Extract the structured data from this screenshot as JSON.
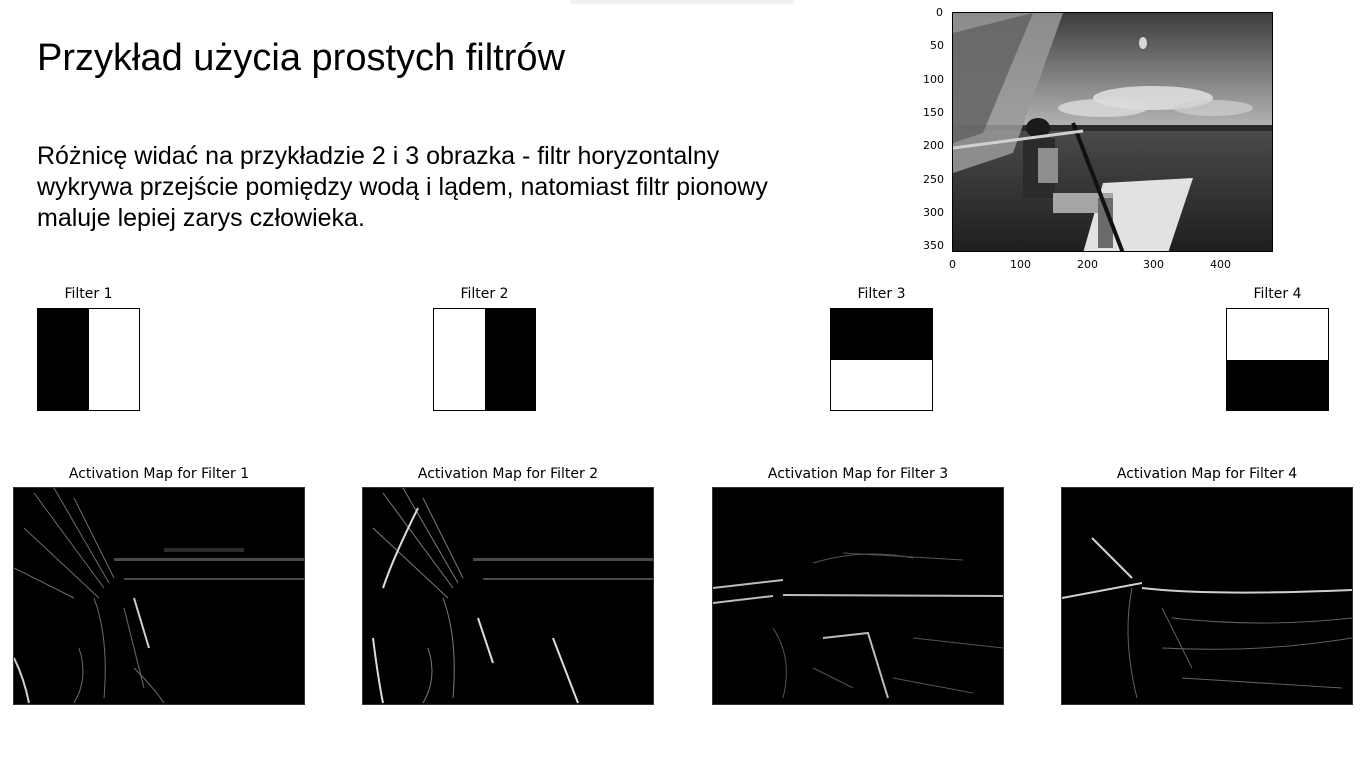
{
  "slide": {
    "title": "Przykład użycia prostych filtrów",
    "body": "Różnicę widać na przykładzie 2 i 3 obrazka - filtr horyzontalny wykrywa przejście pomiędzy wodą i lądem, natomiast filtr pionowy maluje lepiej zarys człowieka."
  },
  "photo_axes": {
    "y_ticks": [
      "0",
      "50",
      "100",
      "150",
      "200",
      "250",
      "300",
      "350"
    ],
    "x_ticks": [
      "0",
      "100",
      "200",
      "300",
      "400"
    ],
    "content": "grayscale photo of a man on a sailboat on a lake"
  },
  "filters": [
    {
      "title": "Filter 1",
      "pattern": [
        "black",
        "white"
      ],
      "orientation": "vertical"
    },
    {
      "title": "Filter 2",
      "pattern": [
        "white",
        "black"
      ],
      "orientation": "vertical"
    },
    {
      "title": "Filter 3",
      "pattern": [
        "black",
        "white"
      ],
      "orientation": "horizontal"
    },
    {
      "title": "Filter 4",
      "pattern": [
        "white",
        "black"
      ],
      "orientation": "horizontal"
    }
  ],
  "activation_maps": [
    {
      "title": "Activation Map for Filter 1"
    },
    {
      "title": "Activation Map for Filter 2"
    },
    {
      "title": "Activation Map for Filter 3"
    },
    {
      "title": "Activation Map for Filter 4"
    }
  ],
  "colors": {
    "background": "#ffffff",
    "text": "#000000",
    "map_background": "#000000"
  }
}
